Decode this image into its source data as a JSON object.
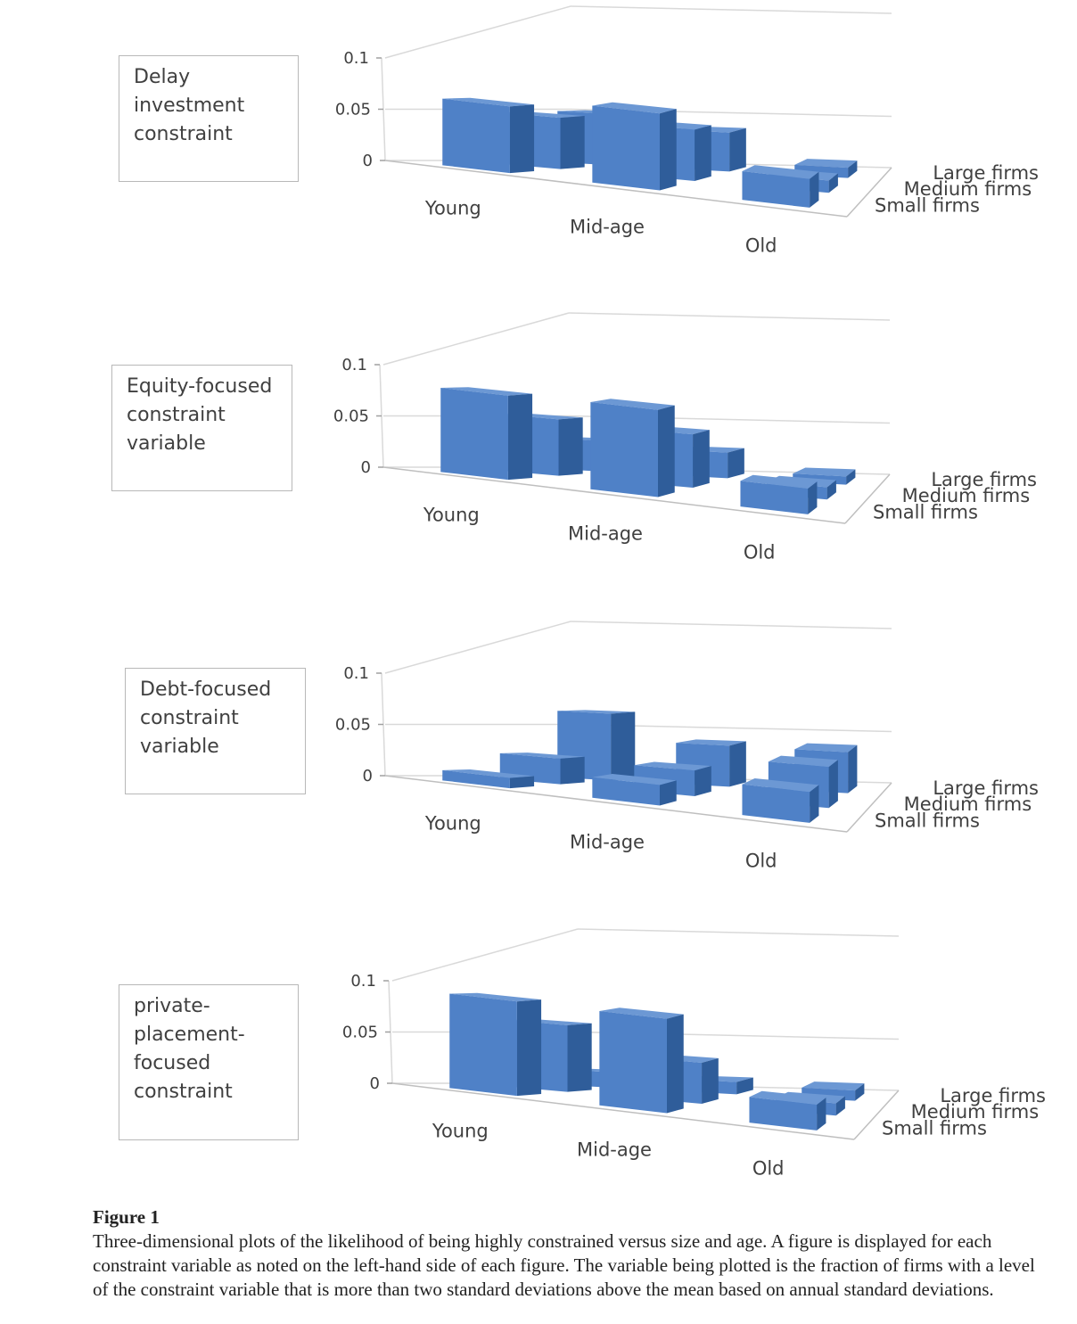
{
  "chart_data": [
    {
      "type": "bar3d",
      "label": [
        "Delay",
        "investment",
        "constraint"
      ],
      "x_categories": [
        "Young",
        "Mid-age",
        "Old"
      ],
      "depth_categories": [
        "Small firms",
        "Medium firms",
        "Large firms"
      ],
      "z_ticks": [
        "0",
        "0.05",
        "0.1"
      ],
      "zlim": [
        0,
        0.1
      ],
      "series": [
        {
          "name": "Small firms",
          "values": [
            0.065,
            0.075,
            0.028
          ]
        },
        {
          "name": "Medium firms",
          "values": [
            0.05,
            0.05,
            0.012
          ]
        },
        {
          "name": "Large firms",
          "values": [
            0.05,
            0.038,
            0.01
          ]
        }
      ]
    },
    {
      "type": "bar3d",
      "label": [
        "Equity-focused",
        "constraint",
        "variable"
      ],
      "x_categories": [
        "Young",
        "Mid-age",
        "Old"
      ],
      "depth_categories": [
        "Small firms",
        "Medium firms",
        "Large firms"
      ],
      "z_ticks": [
        "0",
        "0.05",
        "0.1"
      ],
      "zlim": [
        0,
        0.1
      ],
      "series": [
        {
          "name": "Small firms",
          "values": [
            0.082,
            0.085,
            0.025
          ]
        },
        {
          "name": "Medium firms",
          "values": [
            0.055,
            0.052,
            0.012
          ]
        },
        {
          "name": "Large firms",
          "values": [
            0.03,
            0.025,
            0.008
          ]
        }
      ]
    },
    {
      "type": "bar3d",
      "label": [
        "Debt-focused",
        "constraint",
        "variable"
      ],
      "x_categories": [
        "Young",
        "Mid-age",
        "Old"
      ],
      "depth_categories": [
        "Small firms",
        "Medium firms",
        "Large firms"
      ],
      "z_ticks": [
        "0",
        "0.05",
        "0.1"
      ],
      "zlim": [
        0,
        0.1
      ],
      "series": [
        {
          "name": "Small firms",
          "values": [
            0.01,
            0.02,
            0.03
          ]
        },
        {
          "name": "Medium firms",
          "values": [
            0.025,
            0.025,
            0.04
          ]
        },
        {
          "name": "Large firms",
          "values": [
            0.065,
            0.04,
            0.04
          ]
        }
      ]
    },
    {
      "type": "bar3d",
      "label": [
        "private-",
        "placement-",
        "focused",
        "constraint"
      ],
      "x_categories": [
        "Young",
        "Mid-age",
        "Old"
      ],
      "depth_categories": [
        "Small firms",
        "Medium firms",
        "Large firms"
      ],
      "z_ticks": [
        "0",
        "0.05",
        "0.1"
      ],
      "zlim": [
        0,
        0.1
      ],
      "series": [
        {
          "name": "Small firms",
          "values": [
            0.092,
            0.092,
            0.025
          ]
        },
        {
          "name": "Medium firms",
          "values": [
            0.065,
            0.04,
            0.012
          ]
        },
        {
          "name": "Large firms",
          "values": [
            0.015,
            0.012,
            0.01
          ]
        }
      ]
    }
  ],
  "caption": {
    "title": "Figure 1",
    "text": "Three-dimensional plots of the likelihood of being highly constrained versus size and age. A figure is displayed for each constraint variable as noted on the left-hand side of each figure. The variable being plotted is the fraction of firms with a level of the constraint variable that is more than two standard deviations above the mean based on annual standard deviations."
  },
  "colors": {
    "bar_front": "#4f81c7",
    "bar_top": "#6c98d4",
    "bar_side": "#2f5d9a",
    "gridline": "#d9d9d9",
    "axis_text": "#404040"
  }
}
